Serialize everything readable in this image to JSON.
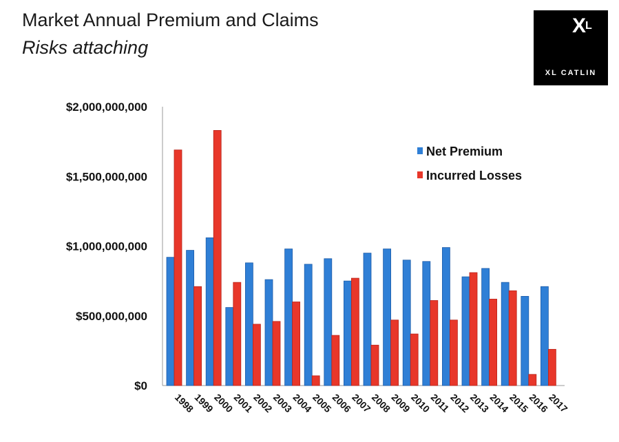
{
  "header": {
    "title": "Market Annual Premium and Claims",
    "subtitle": "Risks attaching"
  },
  "logo": {
    "text": "XL CATLIN",
    "mark": "XL"
  },
  "colors": {
    "net_premium": "#2f7fd6",
    "incurred_losses": "#e8372a"
  },
  "chart_data": {
    "type": "bar",
    "title": "Market Annual Premium and Claims",
    "subtitle": "Risks attaching",
    "categories": [
      "1998",
      "1999",
      "2000",
      "2001",
      "2002",
      "2003",
      "2004",
      "2005",
      "2006",
      "2007",
      "2008",
      "2009",
      "2010",
      "2011",
      "2012",
      "2013",
      "2014",
      "2015",
      "2016",
      "2017"
    ],
    "series": [
      {
        "name": "Net Premium",
        "values": [
          920000000,
          970000000,
          1060000000,
          560000000,
          880000000,
          760000000,
          980000000,
          870000000,
          910000000,
          750000000,
          950000000,
          980000000,
          900000000,
          890000000,
          990000000,
          780000000,
          840000000,
          740000000,
          640000000,
          710000000
        ]
      },
      {
        "name": "Incurred Losses",
        "values": [
          1690000000,
          710000000,
          1830000000,
          740000000,
          440000000,
          460000000,
          600000000,
          70000000,
          360000000,
          770000000,
          290000000,
          470000000,
          370000000,
          610000000,
          470000000,
          810000000,
          620000000,
          680000000,
          80000000,
          260000000
        ]
      }
    ],
    "yticks": [
      "$2,000,000,000",
      "$1,500,000,000",
      "$1,000,000,000",
      "$500,000,000",
      "$0"
    ],
    "ylim": [
      0,
      2000000000
    ],
    "legend_position": "top-right",
    "grid": false
  }
}
